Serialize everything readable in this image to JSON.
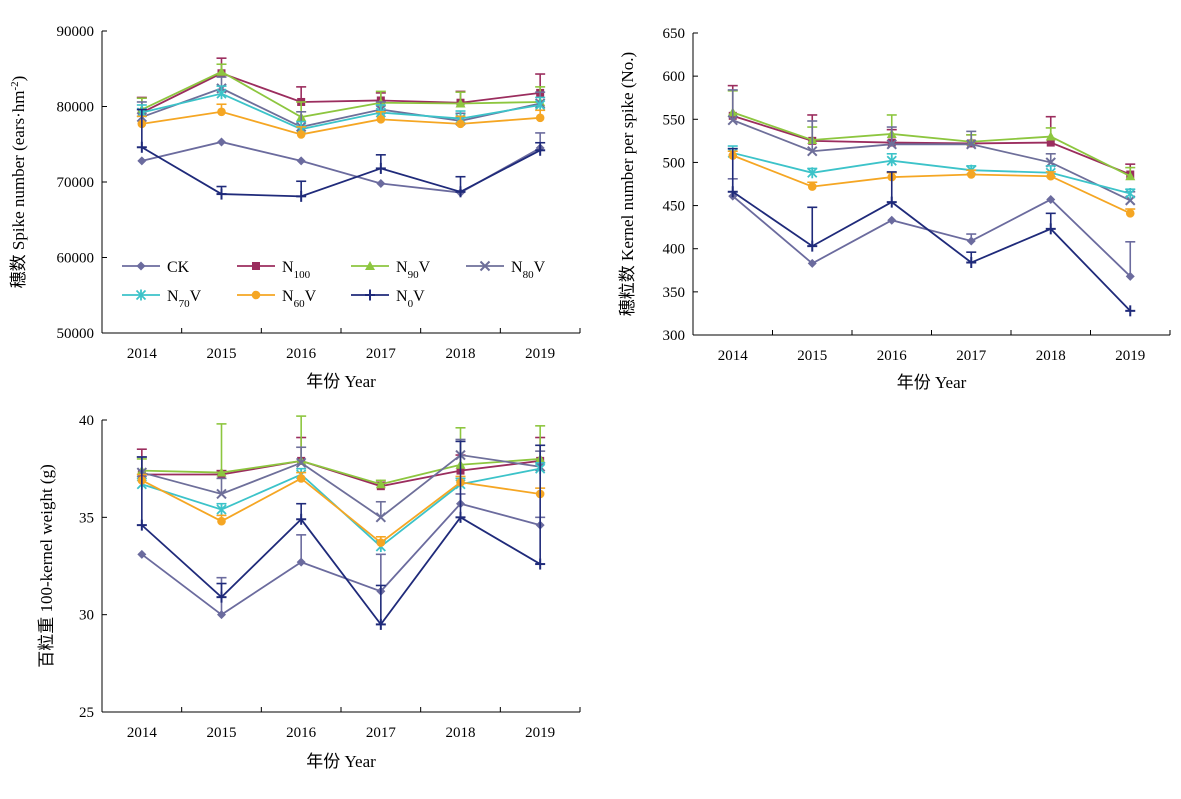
{
  "series_styles": [
    {
      "key": "CK",
      "color": "#6B6B9E",
      "marker": "diamond"
    },
    {
      "key": "N100",
      "color": "#9B2D5E",
      "marker": "square"
    },
    {
      "key": "N90V",
      "color": "#8DC63F",
      "marker": "triangle"
    },
    {
      "key": "N80V",
      "color": "#6E6F9A",
      "marker": "x"
    },
    {
      "key": "N70V",
      "color": "#3CC3C9",
      "marker": "star"
    },
    {
      "key": "N60V",
      "color": "#F5A623",
      "marker": "circle"
    },
    {
      "key": "N0V",
      "color": "#1F2A7A",
      "marker": "plus"
    }
  ],
  "legend": [
    {
      "key": "CK",
      "base": "CK",
      "sub": "",
      "suffix": ""
    },
    {
      "key": "N100",
      "base": "N",
      "sub": "100",
      "suffix": ""
    },
    {
      "key": "N90V",
      "base": "N",
      "sub": "90",
      "suffix": "V"
    },
    {
      "key": "N80V",
      "base": "N",
      "sub": "80",
      "suffix": "V"
    },
    {
      "key": "N70V",
      "base": "N",
      "sub": "70",
      "suffix": "V"
    },
    {
      "key": "N60V",
      "base": "N",
      "sub": "60",
      "suffix": "V"
    },
    {
      "key": "N0V",
      "base": "N",
      "sub": "0",
      "suffix": "V"
    }
  ],
  "chart_data": [
    {
      "type": "line",
      "x": [
        "2014",
        "2015",
        "2016",
        "2017",
        "2018",
        "2019"
      ],
      "xlabel": "年份 Year",
      "ylabel_main": "穗数 Spike number (ears·hm",
      "ylabel_sup": "-2",
      "ylabel_end": ")",
      "ylim": [
        50000,
        90000
      ],
      "yticks": [
        50000,
        60000,
        70000,
        80000,
        90000
      ],
      "legend_position": "inside-bottom",
      "series": [
        {
          "key": "CK",
          "values": [
            72800,
            75300,
            72800,
            69800,
            68600,
            74500
          ],
          "errors": [
            0,
            0,
            0,
            0,
            0,
            2000
          ]
        },
        {
          "key": "N100",
          "values": [
            79200,
            84400,
            80600,
            80800,
            80500,
            81800
          ],
          "errors": [
            2000,
            2000,
            2000,
            1000,
            1500,
            2500
          ]
        },
        {
          "key": "N90V",
          "values": [
            79600,
            84600,
            78600,
            80500,
            80400,
            80600
          ],
          "errors": [
            1500,
            1000,
            2000,
            1500,
            1500,
            2000
          ]
        },
        {
          "key": "N80V",
          "values": [
            78600,
            82400,
            77300,
            79600,
            78100,
            80400
          ],
          "errors": [
            2000,
            1500,
            2000,
            1000,
            1000,
            1500
          ]
        },
        {
          "key": "N70V",
          "values": [
            79200,
            81700,
            77000,
            79200,
            78400,
            80200
          ],
          "errors": [
            1000,
            1000,
            1000,
            1000,
            1000,
            1000
          ]
        },
        {
          "key": "N60V",
          "values": [
            77700,
            79300,
            76300,
            78300,
            77700,
            78500
          ],
          "errors": [
            1000,
            1000,
            1000,
            1000,
            1000,
            1000
          ]
        },
        {
          "key": "N0V",
          "values": [
            74600,
            68400,
            68100,
            71800,
            68700,
            74200
          ],
          "errors": [
            5000,
            1000,
            2000,
            1800,
            2000,
            1000
          ]
        }
      ]
    },
    {
      "type": "line",
      "x": [
        "2014",
        "2015",
        "2016",
        "2017",
        "2018",
        "2019"
      ],
      "xlabel": "年份 Year",
      "ylabel_main": "穗粒数 Kernel number per spike (No.)",
      "ylabel_sup": "",
      "ylabel_end": "",
      "ylim": [
        300,
        650
      ],
      "yticks": [
        300,
        350,
        400,
        450,
        500,
        550,
        600,
        650
      ],
      "series": [
        {
          "key": "CK",
          "values": [
            461,
            383,
            433,
            409,
            457,
            368
          ],
          "errors": [
            20,
            0,
            0,
            8,
            0,
            40
          ]
        },
        {
          "key": "N100",
          "values": [
            554,
            525,
            523,
            522,
            523,
            486
          ],
          "errors": [
            35,
            30,
            15,
            10,
            30,
            12
          ]
        },
        {
          "key": "N90V",
          "values": [
            558,
            526,
            533,
            524,
            530,
            484
          ],
          "errors": [
            25,
            15,
            22,
            8,
            10,
            10
          ]
        },
        {
          "key": "N80V",
          "values": [
            549,
            513,
            521,
            521,
            500,
            456
          ],
          "errors": [
            35,
            35,
            20,
            15,
            10,
            10
          ]
        },
        {
          "key": "N70V",
          "values": [
            511,
            488,
            502,
            491,
            488,
            464
          ],
          "errors": [
            8,
            5,
            8,
            5,
            8,
            5
          ]
        },
        {
          "key": "N60V",
          "values": [
            508,
            472,
            483,
            486,
            484,
            441
          ],
          "errors": [
            5,
            5,
            5,
            5,
            5,
            5
          ]
        },
        {
          "key": "N0V",
          "values": [
            466,
            403,
            454,
            384,
            423,
            328
          ],
          "errors": [
            50,
            45,
            35,
            12,
            18,
            0
          ]
        }
      ]
    },
    {
      "type": "line",
      "x": [
        "2014",
        "2015",
        "2016",
        "2017",
        "2018",
        "2019"
      ],
      "xlabel": "年份 Year",
      "ylabel_main": "百粒重 100-kernel weight (g)",
      "ylabel_sup": "",
      "ylabel_end": "",
      "ylim": [
        25,
        40
      ],
      "yticks": [
        25,
        30,
        35,
        40
      ],
      "series": [
        {
          "key": "CK",
          "values": [
            33.1,
            30.0,
            32.7,
            31.2,
            35.7,
            34.6
          ],
          "errors": [
            0,
            1.9,
            1.4,
            1.9,
            0.5,
            0.4
          ]
        },
        {
          "key": "N100",
          "values": [
            37.2,
            37.2,
            37.9,
            36.6,
            37.4,
            37.9
          ],
          "errors": [
            1.3,
            0.2,
            1.2,
            0.2,
            0.8,
            1.2
          ]
        },
        {
          "key": "N90V",
          "values": [
            37.4,
            37.3,
            37.9,
            36.7,
            37.7,
            38.0
          ],
          "errors": [
            0.6,
            2.5,
            2.3,
            0.2,
            1.9,
            1.7
          ]
        },
        {
          "key": "N80V",
          "values": [
            37.3,
            36.2,
            37.8,
            35.0,
            38.2,
            37.6
          ],
          "errors": [
            0.8,
            0.8,
            0.8,
            0.8,
            0.8,
            0.8
          ]
        },
        {
          "key": "N70V",
          "values": [
            36.7,
            35.4,
            37.2,
            33.5,
            36.7,
            37.5
          ],
          "errors": [
            0.3,
            0.3,
            0.3,
            0.3,
            0.3,
            0.3
          ]
        },
        {
          "key": "N60V",
          "values": [
            36.9,
            34.8,
            37.0,
            33.7,
            36.8,
            36.2
          ],
          "errors": [
            0.3,
            0.3,
            0.3,
            0.3,
            0.3,
            0.3
          ]
        },
        {
          "key": "N0V",
          "values": [
            34.6,
            30.9,
            34.9,
            29.5,
            35.0,
            32.6
          ],
          "errors": [
            3.5,
            0.7,
            0.8,
            2.0,
            3.9,
            6.1
          ]
        }
      ]
    }
  ]
}
